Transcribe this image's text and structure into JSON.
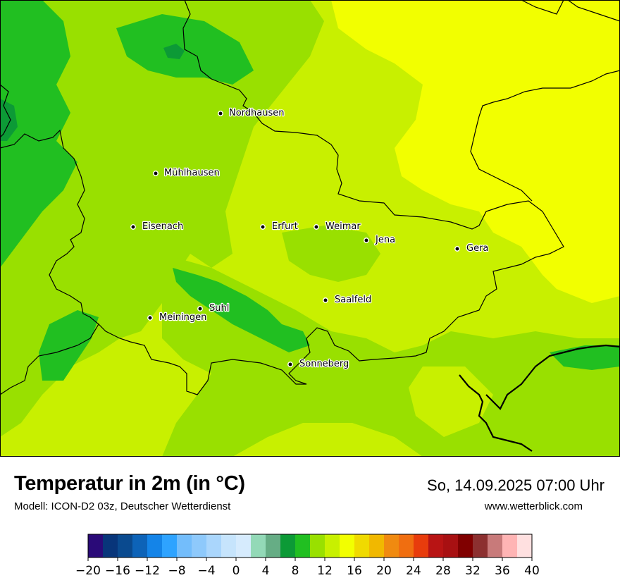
{
  "title": "Temperatur in 2m (in °C)",
  "subtitle": "Modell: ICON-D2 03z, Deutscher Wetterdienst",
  "datetime": "So, 14.09.2025 07:00 Uhr",
  "website": "www.wetterblick.com",
  "cities": [
    {
      "name": "Nordhausen"
    },
    {
      "name": "Mühlhausen"
    },
    {
      "name": "Eisenach"
    },
    {
      "name": "Erfurt"
    },
    {
      "name": "Weimar"
    },
    {
      "name": "Jena"
    },
    {
      "name": "Gera"
    },
    {
      "name": "Saalfeld"
    },
    {
      "name": "Suhl"
    },
    {
      "name": "Meiningen"
    },
    {
      "name": "Sonneberg"
    }
  ],
  "legend": {
    "min": -20,
    "max": 40,
    "step": 2,
    "tick_labels": [
      "−20",
      "−16",
      "−12",
      "−8",
      "−4",
      "0",
      "4",
      "8",
      "12",
      "16",
      "20",
      "24",
      "28",
      "32",
      "36",
      "40"
    ],
    "colors": [
      "#2a0a78",
      "#08357a",
      "#0a4a8f",
      "#0d63b8",
      "#1484e8",
      "#2ea3ff",
      "#73bdfb",
      "#8ec9fb",
      "#aad6fc",
      "#c6e4fc",
      "#d6ebfd",
      "#93d9b7",
      "#66ad85",
      "#0c9a36",
      "#21bf21",
      "#99e000",
      "#c8f000",
      "#f2ff00",
      "#f0da00",
      "#f1b800",
      "#f08a10",
      "#f06e10",
      "#e83c0c",
      "#b81414",
      "#a81012",
      "#800000",
      "#8c3030",
      "#c87a7a",
      "#ffb4b4",
      "#ffe0e0"
    ]
  }
}
